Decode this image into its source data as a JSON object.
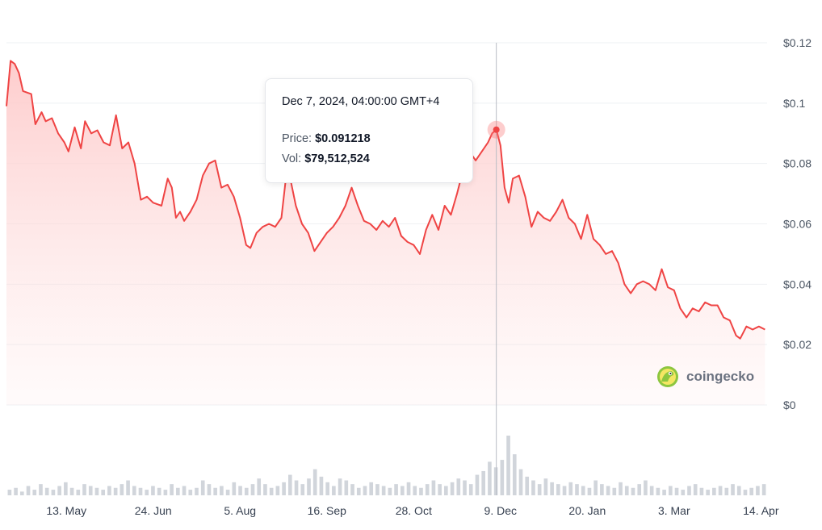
{
  "chart_data": {
    "type": "area",
    "title": "",
    "xlabel": "",
    "ylabel": "",
    "ylim": [
      0,
      0.12
    ],
    "y_ticks": [
      "$0.12",
      "$0.1",
      "$0.08",
      "$0.06",
      "$0.04",
      "$0.02",
      "$0"
    ],
    "y_tick_values": [
      0.12,
      0.1,
      0.08,
      0.06,
      0.04,
      0.02,
      0
    ],
    "x_ticks": [
      "13. May",
      "24. Jun",
      "5. Aug",
      "16. Sep",
      "28. Oct",
      "9. Dec",
      "20. Jan",
      "3. Mar",
      "14. Apr"
    ],
    "x_tick_dates": [
      "2024-05-13",
      "2024-06-24",
      "2024-08-05",
      "2024-09-16",
      "2024-10-28",
      "2024-12-09",
      "2025-01-20",
      "2025-03-03",
      "2025-04-14"
    ],
    "xlim": [
      "2024-04-14",
      "2025-04-17"
    ],
    "series": [
      {
        "color": "#ef4444",
        "points": [
          [
            "2024-04-14",
            0.099
          ],
          [
            "2024-04-16",
            0.114
          ],
          [
            "2024-04-18",
            0.113
          ],
          [
            "2024-04-20",
            0.11
          ],
          [
            "2024-04-22",
            0.104
          ],
          [
            "2024-04-26",
            0.103
          ],
          [
            "2024-04-28",
            0.093
          ],
          [
            "2024-05-01",
            0.097
          ],
          [
            "2024-05-03",
            0.094
          ],
          [
            "2024-05-06",
            0.095
          ],
          [
            "2024-05-09",
            0.09
          ],
          [
            "2024-05-12",
            0.087
          ],
          [
            "2024-05-14",
            0.084
          ],
          [
            "2024-05-17",
            0.092
          ],
          [
            "2024-05-20",
            0.085
          ],
          [
            "2024-05-22",
            0.094
          ],
          [
            "2024-05-25",
            0.09
          ],
          [
            "2024-05-28",
            0.091
          ],
          [
            "2024-05-31",
            0.087
          ],
          [
            "2024-06-03",
            0.086
          ],
          [
            "2024-06-06",
            0.096
          ],
          [
            "2024-06-09",
            0.085
          ],
          [
            "2024-06-12",
            0.087
          ],
          [
            "2024-06-15",
            0.08
          ],
          [
            "2024-06-18",
            0.068
          ],
          [
            "2024-06-21",
            0.069
          ],
          [
            "2024-06-24",
            0.067
          ],
          [
            "2024-06-28",
            0.066
          ],
          [
            "2024-07-01",
            0.075
          ],
          [
            "2024-07-03",
            0.072
          ],
          [
            "2024-07-05",
            0.062
          ],
          [
            "2024-07-07",
            0.064
          ],
          [
            "2024-07-09",
            0.061
          ],
          [
            "2024-07-12",
            0.064
          ],
          [
            "2024-07-15",
            0.068
          ],
          [
            "2024-07-18",
            0.076
          ],
          [
            "2024-07-21",
            0.08
          ],
          [
            "2024-07-24",
            0.081
          ],
          [
            "2024-07-27",
            0.072
          ],
          [
            "2024-07-30",
            0.073
          ],
          [
            "2024-08-02",
            0.069
          ],
          [
            "2024-08-05",
            0.062
          ],
          [
            "2024-08-08",
            0.053
          ],
          [
            "2024-08-10",
            0.052
          ],
          [
            "2024-08-13",
            0.057
          ],
          [
            "2024-08-16",
            0.059
          ],
          [
            "2024-08-19",
            0.06
          ],
          [
            "2024-08-22",
            0.059
          ],
          [
            "2024-08-25",
            0.062
          ],
          [
            "2024-08-27",
            0.074
          ],
          [
            "2024-08-29",
            0.076
          ],
          [
            "2024-09-01",
            0.066
          ],
          [
            "2024-09-04",
            0.06
          ],
          [
            "2024-09-07",
            0.057
          ],
          [
            "2024-09-10",
            0.051
          ],
          [
            "2024-09-13",
            0.054
          ],
          [
            "2024-09-16",
            0.057
          ],
          [
            "2024-09-19",
            0.059
          ],
          [
            "2024-09-22",
            0.062
          ],
          [
            "2024-09-25",
            0.066
          ],
          [
            "2024-09-28",
            0.072
          ],
          [
            "2024-10-01",
            0.066
          ],
          [
            "2024-10-04",
            0.061
          ],
          [
            "2024-10-07",
            0.06
          ],
          [
            "2024-10-10",
            0.058
          ],
          [
            "2024-10-13",
            0.061
          ],
          [
            "2024-10-16",
            0.059
          ],
          [
            "2024-10-19",
            0.062
          ],
          [
            "2024-10-22",
            0.056
          ],
          [
            "2024-10-25",
            0.054
          ],
          [
            "2024-10-28",
            0.053
          ],
          [
            "2024-10-31",
            0.05
          ],
          [
            "2024-11-03",
            0.058
          ],
          [
            "2024-11-06",
            0.063
          ],
          [
            "2024-11-09",
            0.058
          ],
          [
            "2024-11-12",
            0.066
          ],
          [
            "2024-11-15",
            0.063
          ],
          [
            "2024-11-18",
            0.07
          ],
          [
            "2024-11-21",
            0.078
          ],
          [
            "2024-11-24",
            0.084
          ],
          [
            "2024-11-27",
            0.081
          ],
          [
            "2024-11-30",
            0.084
          ],
          [
            "2024-12-03",
            0.087
          ],
          [
            "2024-12-05",
            0.09
          ],
          [
            "2024-12-07",
            0.0912
          ],
          [
            "2024-12-09",
            0.086
          ],
          [
            "2024-12-11",
            0.072
          ],
          [
            "2024-12-13",
            0.067
          ],
          [
            "2024-12-15",
            0.075
          ],
          [
            "2024-12-18",
            0.076
          ],
          [
            "2024-12-21",
            0.069
          ],
          [
            "2024-12-24",
            0.059
          ],
          [
            "2024-12-27",
            0.064
          ],
          [
            "2024-12-30",
            0.062
          ],
          [
            "2025-01-02",
            0.061
          ],
          [
            "2025-01-05",
            0.064
          ],
          [
            "2025-01-08",
            0.068
          ],
          [
            "2025-01-11",
            0.062
          ],
          [
            "2025-01-14",
            0.06
          ],
          [
            "2025-01-17",
            0.055
          ],
          [
            "2025-01-20",
            0.063
          ],
          [
            "2025-01-23",
            0.055
          ],
          [
            "2025-01-26",
            0.053
          ],
          [
            "2025-01-29",
            0.05
          ],
          [
            "2025-02-01",
            0.051
          ],
          [
            "2025-02-04",
            0.047
          ],
          [
            "2025-02-07",
            0.04
          ],
          [
            "2025-02-10",
            0.037
          ],
          [
            "2025-02-13",
            0.04
          ],
          [
            "2025-02-16",
            0.041
          ],
          [
            "2025-02-19",
            0.04
          ],
          [
            "2025-02-22",
            0.038
          ],
          [
            "2025-02-25",
            0.045
          ],
          [
            "2025-02-28",
            0.039
          ],
          [
            "2025-03-03",
            0.038
          ],
          [
            "2025-03-06",
            0.032
          ],
          [
            "2025-03-09",
            0.029
          ],
          [
            "2025-03-12",
            0.032
          ],
          [
            "2025-03-15",
            0.031
          ],
          [
            "2025-03-18",
            0.034
          ],
          [
            "2025-03-21",
            0.033
          ],
          [
            "2025-03-24",
            0.033
          ],
          [
            "2025-03-27",
            0.029
          ],
          [
            "2025-03-30",
            0.028
          ],
          [
            "2025-04-02",
            0.023
          ],
          [
            "2025-04-04",
            0.022
          ],
          [
            "2025-04-07",
            0.026
          ],
          [
            "2025-04-10",
            0.025
          ],
          [
            "2025-04-13",
            0.026
          ],
          [
            "2025-04-16",
            0.025
          ]
        ]
      }
    ],
    "volume_series": {
      "color": "#d1d5db",
      "values": [
        3,
        4,
        2,
        5,
        3,
        6,
        4,
        3,
        5,
        7,
        4,
        3,
        6,
        5,
        4,
        3,
        5,
        4,
        6,
        8,
        5,
        4,
        3,
        5,
        4,
        3,
        6,
        4,
        5,
        3,
        4,
        8,
        6,
        4,
        5,
        3,
        7,
        5,
        4,
        6,
        9,
        6,
        4,
        5,
        7,
        11,
        8,
        6,
        9,
        14,
        10,
        7,
        5,
        9,
        8,
        6,
        4,
        5,
        7,
        6,
        5,
        4,
        6,
        5,
        7,
        5,
        4,
        6,
        8,
        6,
        5,
        7,
        9,
        8,
        6,
        11,
        13,
        18,
        15,
        19,
        32,
        22,
        14,
        10,
        8,
        6,
        9,
        7,
        6,
        5,
        7,
        6,
        5,
        4,
        8,
        6,
        5,
        4,
        7,
        5,
        4,
        6,
        8,
        5,
        4,
        3,
        5,
        4,
        3,
        5,
        6,
        4,
        3,
        4,
        5,
        4,
        6,
        5,
        3,
        4,
        5,
        6
      ]
    },
    "grid": true,
    "legend": "none",
    "crosshair_date": "2024-12-07"
  },
  "tooltip": {
    "date": "Dec 7, 2024, 04:00:00 GMT+4",
    "price_label": "Price:",
    "price_value": "$0.091218",
    "vol_label": "Vol:",
    "vol_value": "$79,512,524"
  },
  "brand": {
    "name": "coingecko",
    "logo_icon": "gecko-logo-icon"
  }
}
